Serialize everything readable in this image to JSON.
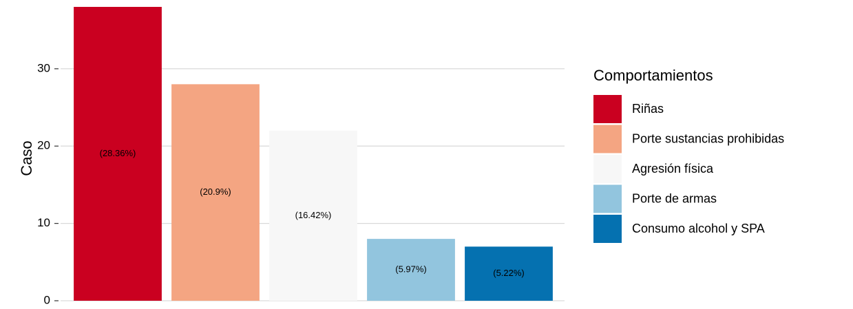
{
  "chart_data": {
    "type": "bar",
    "categories": [
      "Riñas",
      "Porte sustancias prohibidas",
      "Agresión física",
      "Porte de armas",
      "Consumo alcohol y SPA"
    ],
    "values": [
      38,
      28,
      22,
      8,
      7
    ],
    "value_labels": [
      "(28.36%)",
      "(20.9%)",
      "(16.42%)",
      "(5.97%)",
      "(5.22%)"
    ],
    "colors": [
      "#ca0020",
      "#f4a582",
      "#f7f7f7",
      "#92c5de",
      "#0571b0"
    ],
    "ylabel": "Caso",
    "legend_title": "Comportamientos",
    "legend": "right",
    "ylim": [
      0,
      38
    ],
    "yticks": [
      0,
      10,
      20,
      30
    ],
    "grid": true
  }
}
